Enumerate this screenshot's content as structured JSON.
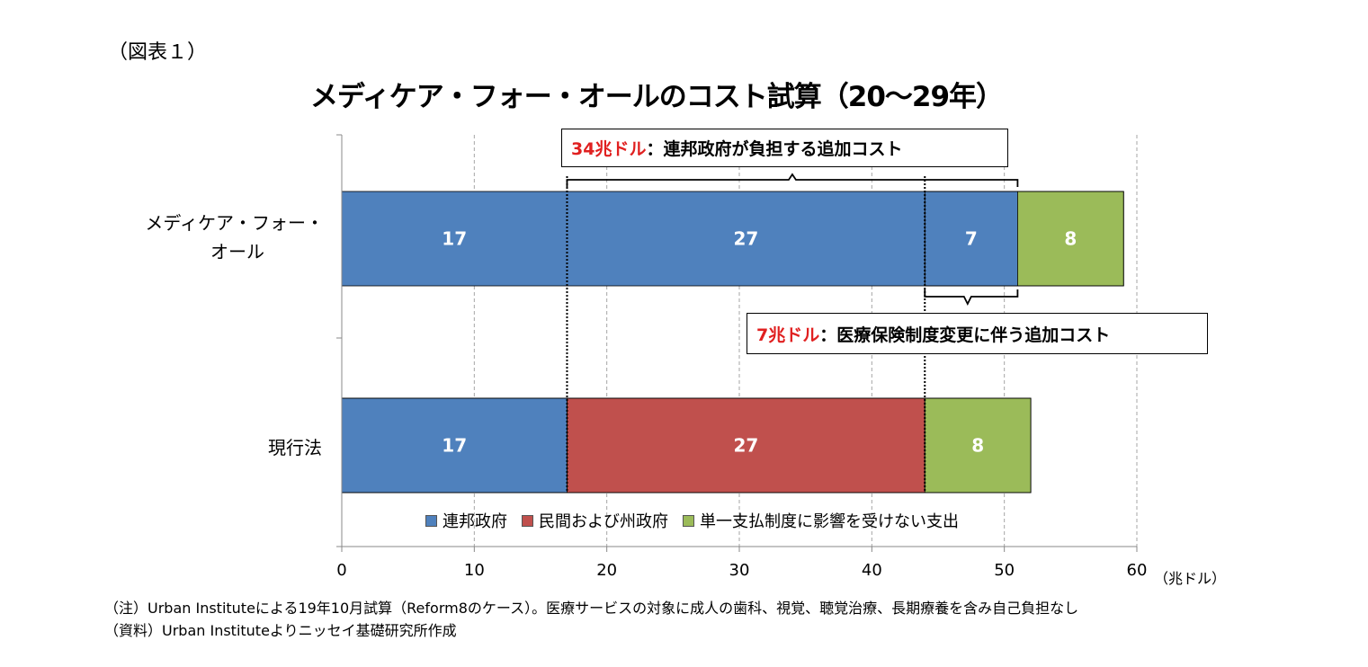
{
  "figure_label": "（図表１）",
  "title": "メディケア・フォー・オールのコスト試算（20～29年）",
  "unit_label": "（兆ドル）",
  "notes": [
    "（注）Urban Instituteによる19年10月試算（Reform8のケース）。医療サービスの対象に成人の歯科、視覚、聴覚治療、長期療養を含み自己負担なし",
    "（資料）Urban Instituteよりニッセイ基礎研究所作成"
  ],
  "annotations": [
    {
      "amount": "34兆ドル",
      "text": "：連邦政府が負担する追加コスト"
    },
    {
      "amount": "7兆ドル",
      "text": "：医療保険制度変更に伴う追加コスト"
    }
  ],
  "chart_data": {
    "type": "bar",
    "orientation": "horizontal",
    "stacked": true,
    "categories": [
      "メディケア・フォー・オール",
      "現行法"
    ],
    "category_labels": [
      [
        "メディケア・フォー・",
        "オール"
      ],
      [
        "現行法"
      ]
    ],
    "x_ticks": [
      "0",
      "10",
      "20",
      "30",
      "40",
      "50",
      "60"
    ],
    "xlim": [
      0,
      60
    ],
    "grid": true,
    "legend_position": "bottom",
    "legend": [
      {
        "name": "連邦政府",
        "color": "#4f81bd"
      },
      {
        "name": "民間および州政府",
        "color": "#c0504d"
      },
      {
        "name": "単一支払制度に影響を受けない支出",
        "color": "#9bbb59"
      }
    ],
    "bars": [
      {
        "category": "メディケア・フォー・オール",
        "segments": [
          {
            "value": 17,
            "label": "17",
            "color": "#4f81bd"
          },
          {
            "value": 27,
            "label": "27",
            "color": "#4f81bd"
          },
          {
            "value": 7,
            "label": "7",
            "color": "#4f81bd"
          },
          {
            "value": 8,
            "label": "8",
            "color": "#9bbb59"
          }
        ]
      },
      {
        "category": "現行法",
        "segments": [
          {
            "value": 17,
            "label": "17",
            "color": "#4f81bd"
          },
          {
            "value": 27,
            "label": "27",
            "color": "#c0504d"
          },
          {
            "value": 8,
            "label": "8",
            "color": "#9bbb59"
          }
        ]
      }
    ]
  }
}
